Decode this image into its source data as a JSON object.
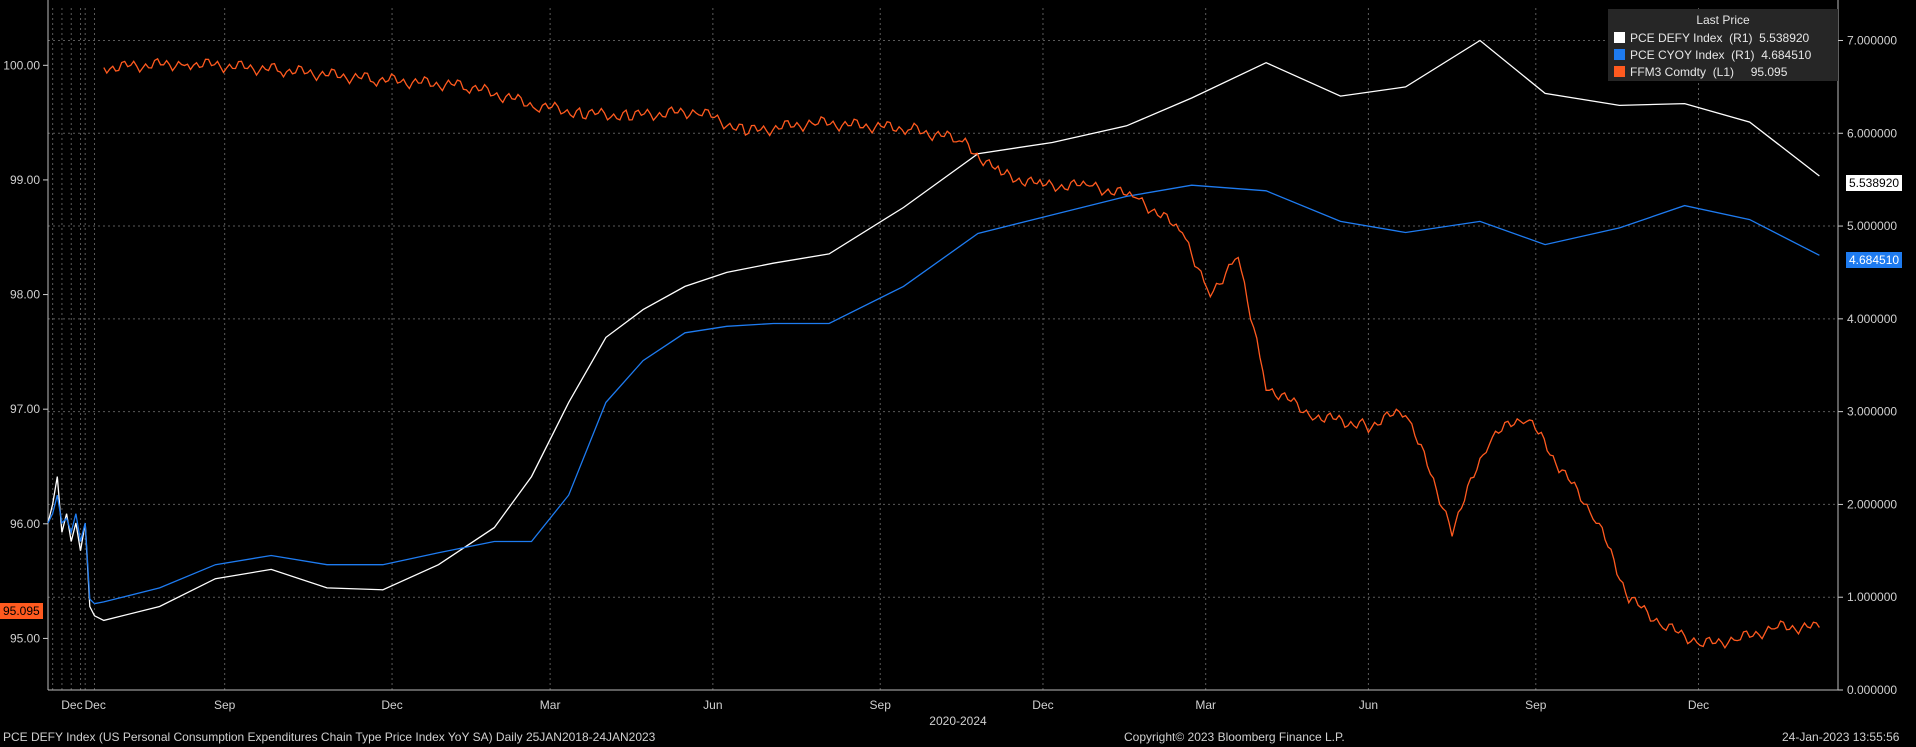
{
  "chart_data": {
    "type": "line",
    "title": "",
    "legend": {
      "title": "Last Price",
      "placement": "top-right",
      "entries": [
        {
          "name": "PCE DEFY Index",
          "axis": "(R1)",
          "last": "5.538920",
          "color": "#ffffff"
        },
        {
          "name": "PCE CYOY Index",
          "axis": "(R1)",
          "last": "4.684510",
          "color": "#1e7bf0"
        },
        {
          "name": "FFM3 Comdty",
          "axis": "(L1)",
          "last": "95.095",
          "color": "#ff5a1f"
        }
      ]
    },
    "x_ticks": [
      "Dec",
      "Dec",
      "Sep",
      "Dec",
      "Mar",
      "Jun",
      "Sep",
      "Dec",
      "Mar",
      "Jun",
      "Sep",
      "Dec"
    ],
    "x_axis_label": "2020-2024",
    "left_axis": {
      "ylim": [
        94.55,
        100.5
      ],
      "ticks": [
        "95.00",
        "96.00",
        "97.00",
        "98.00",
        "99.00",
        "100.00"
      ]
    },
    "right_axis": {
      "ylim": [
        0,
        7.35
      ],
      "ticks": [
        "0.000000",
        "1.000000",
        "2.000000",
        "3.000000",
        "4.000000",
        "5.000000",
        "6.000000",
        "7.000000"
      ]
    },
    "grid": true,
    "series": [
      {
        "name": "PCE DEFY Index",
        "axis": "right",
        "color": "#ffffff",
        "points": [
          [
            0,
            1.8
          ],
          [
            1,
            2.0
          ],
          [
            2,
            2.3
          ],
          [
            3,
            1.7
          ],
          [
            4,
            1.9
          ],
          [
            5,
            1.6
          ],
          [
            6,
            1.8
          ],
          [
            7,
            1.5
          ],
          [
            8,
            1.8
          ],
          [
            9,
            0.9
          ],
          [
            10,
            0.8
          ],
          [
            12,
            0.75
          ],
          [
            24,
            0.9
          ],
          [
            36,
            1.2
          ],
          [
            48,
            1.3
          ],
          [
            60,
            1.1
          ],
          [
            72,
            1.08
          ],
          [
            84,
            1.35
          ],
          [
            96,
            1.75
          ],
          [
            104,
            2.3
          ],
          [
            112,
            3.1
          ],
          [
            120,
            3.8
          ],
          [
            128,
            4.1
          ],
          [
            137,
            4.35
          ],
          [
            146,
            4.5
          ],
          [
            156,
            4.6
          ],
          [
            168,
            4.7
          ],
          [
            184,
            5.2
          ],
          [
            200,
            5.78
          ],
          [
            216,
            5.9
          ],
          [
            232,
            6.08
          ],
          [
            246,
            6.38
          ],
          [
            262,
            6.76
          ],
          [
            278,
            6.4
          ],
          [
            292,
            6.5
          ],
          [
            308,
            7.0
          ],
          [
            322,
            6.43
          ],
          [
            338,
            6.3
          ],
          [
            352,
            6.32
          ],
          [
            366,
            6.12
          ],
          [
            381,
            5.53892
          ]
        ]
      },
      {
        "name": "PCE CYOY Index",
        "axis": "right",
        "color": "#1e7bf0",
        "points": [
          [
            0,
            1.8
          ],
          [
            1,
            1.9
          ],
          [
            2,
            2.1
          ],
          [
            3,
            1.8
          ],
          [
            4,
            1.85
          ],
          [
            5,
            1.7
          ],
          [
            6,
            1.9
          ],
          [
            7,
            1.6
          ],
          [
            8,
            1.8
          ],
          [
            9,
            0.98
          ],
          [
            10,
            0.93
          ],
          [
            12,
            0.95
          ],
          [
            24,
            1.1
          ],
          [
            36,
            1.35
          ],
          [
            48,
            1.45
          ],
          [
            60,
            1.35
          ],
          [
            72,
            1.35
          ],
          [
            84,
            1.48
          ],
          [
            96,
            1.6
          ],
          [
            104,
            1.6
          ],
          [
            112,
            2.1
          ],
          [
            120,
            3.1
          ],
          [
            128,
            3.55
          ],
          [
            137,
            3.85
          ],
          [
            146,
            3.92
          ],
          [
            156,
            3.95
          ],
          [
            168,
            3.95
          ],
          [
            184,
            4.35
          ],
          [
            200,
            4.92
          ],
          [
            216,
            5.12
          ],
          [
            232,
            5.32
          ],
          [
            246,
            5.44
          ],
          [
            262,
            5.38
          ],
          [
            278,
            5.05
          ],
          [
            292,
            4.93
          ],
          [
            308,
            5.05
          ],
          [
            322,
            4.8
          ],
          [
            338,
            4.98
          ],
          [
            352,
            5.22
          ],
          [
            366,
            5.07
          ],
          [
            381,
            4.68451
          ]
        ]
      },
      {
        "name": "FFM3 Comdty",
        "axis": "left",
        "color": "#ff5a1f",
        "points": [
          [
            12,
            99.98
          ],
          [
            30,
            100.02
          ],
          [
            50,
            99.96
          ],
          [
            70,
            99.88
          ],
          [
            90,
            99.82
          ],
          [
            105,
            99.65
          ],
          [
            115,
            99.58
          ],
          [
            125,
            99.56
          ],
          [
            140,
            99.6
          ],
          [
            150,
            99.42
          ],
          [
            165,
            99.5
          ],
          [
            185,
            99.45
          ],
          [
            196,
            99.35
          ],
          [
            205,
            99.05
          ],
          [
            214,
            98.95
          ],
          [
            224,
            98.95
          ],
          [
            234,
            98.85
          ],
          [
            244,
            98.55
          ],
          [
            250,
            98.0
          ],
          [
            256,
            98.35
          ],
          [
            262,
            97.2
          ],
          [
            272,
            96.95
          ],
          [
            284,
            96.85
          ],
          [
            292,
            97.0
          ],
          [
            302,
            95.95
          ],
          [
            310,
            96.75
          ],
          [
            318,
            96.95
          ],
          [
            325,
            96.5
          ],
          [
            333,
            96.05
          ],
          [
            340,
            95.35
          ],
          [
            348,
            95.1
          ],
          [
            356,
            94.95
          ],
          [
            364,
            95.0
          ],
          [
            372,
            95.1
          ],
          [
            381,
            95.095
          ]
        ]
      }
    ]
  },
  "value_tags": {
    "pce_defy": "5.538920",
    "pce_cyoy": "4.684510",
    "ffm3": "95.095"
  },
  "footer": {
    "left": "PCE DEFY Index (US Personal Consumption Expenditures Chain Type Price Index YoY SA)  Daily 25JAN2018-24JAN2023",
    "center": "Copyright© 2023 Bloomberg Finance L.P.",
    "right": "24-Jan-2023 13:55:56"
  },
  "colors": {
    "background": "#000000",
    "grid": "#5a5a5a",
    "accent_blue": "#1e7bf0",
    "accent_orange": "#ff5a1f"
  }
}
